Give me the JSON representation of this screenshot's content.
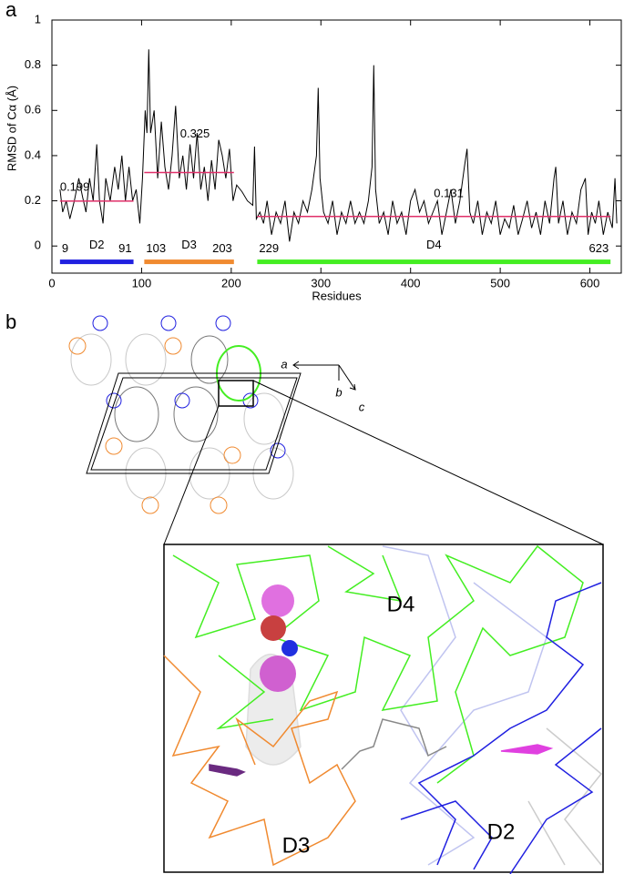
{
  "panel_labels": [
    "a",
    "b"
  ],
  "chart_data": {
    "type": "line",
    "x_label": "Residues",
    "y_label": "RMSD of Cα (Å)",
    "color": "#000000",
    "x": [
      9,
      12,
      16,
      20,
      25,
      30,
      34,
      38,
      42,
      46,
      50,
      53,
      57,
      60,
      65,
      70,
      74,
      78,
      82,
      86,
      90,
      94,
      98,
      101,
      104,
      106,
      108,
      110,
      114,
      118,
      122,
      126,
      130,
      134,
      138,
      142,
      146,
      150,
      154,
      158,
      162,
      166,
      170,
      174,
      178,
      182,
      186,
      190,
      194,
      198,
      202,
      206,
      212,
      218,
      224,
      226,
      228,
      232,
      236,
      240,
      245,
      250,
      255,
      260,
      265,
      270,
      275,
      280,
      285,
      290,
      295,
      297,
      299,
      303,
      308,
      313,
      318,
      323,
      328,
      333,
      338,
      343,
      348,
      353,
      357,
      359,
      361,
      365,
      370,
      375,
      380,
      385,
      390,
      395,
      400,
      405,
      410,
      415,
      420,
      425,
      430,
      435,
      440,
      445,
      450,
      455,
      460,
      463,
      466,
      470,
      475,
      480,
      485,
      490,
      495,
      500,
      505,
      510,
      515,
      520,
      525,
      530,
      535,
      540,
      545,
      550,
      555,
      560,
      562,
      565,
      570,
      575,
      580,
      585,
      590,
      595,
      598,
      602,
      606,
      610,
      615,
      620,
      625,
      628,
      630
    ],
    "values": [
      0.25,
      0.15,
      0.2,
      0.12,
      0.2,
      0.3,
      0.22,
      0.15,
      0.3,
      0.2,
      0.45,
      0.2,
      0.1,
      0.3,
      0.2,
      0.35,
      0.25,
      0.4,
      0.2,
      0.35,
      0.2,
      0.25,
      0.1,
      0.3,
      0.6,
      0.5,
      0.87,
      0.5,
      0.6,
      0.3,
      0.55,
      0.35,
      0.25,
      0.4,
      0.62,
      0.3,
      0.4,
      0.25,
      0.45,
      0.3,
      0.5,
      0.25,
      0.35,
      0.2,
      0.38,
      0.25,
      0.47,
      0.4,
      0.3,
      0.43,
      0.2,
      0.27,
      0.24,
      0.2,
      0.18,
      0.44,
      0.12,
      0.15,
      0.1,
      0.2,
      0.05,
      0.15,
      0.1,
      0.2,
      0.02,
      0.15,
      0.1,
      0.2,
      0.15,
      0.25,
      0.4,
      0.7,
      0.3,
      0.15,
      0.1,
      0.2,
      0.05,
      0.15,
      0.1,
      0.2,
      0.1,
      0.15,
      0.1,
      0.2,
      0.35,
      0.8,
      0.25,
      0.1,
      0.15,
      0.05,
      0.2,
      0.1,
      0.15,
      0.05,
      0.2,
      0.25,
      0.15,
      0.2,
      0.1,
      0.15,
      0.2,
      0.05,
      0.15,
      0.25,
      0.1,
      0.2,
      0.35,
      0.43,
      0.15,
      0.1,
      0.2,
      0.05,
      0.15,
      0.1,
      0.2,
      0.05,
      0.12,
      0.08,
      0.18,
      0.05,
      0.12,
      0.2,
      0.08,
      0.15,
      0.05,
      0.2,
      0.1,
      0.3,
      0.35,
      0.1,
      0.2,
      0.05,
      0.15,
      0.1,
      0.25,
      0.3,
      0.05,
      0.15,
      0.1,
      0.2,
      0.05,
      0.15,
      0.08,
      0.3,
      0.1
    ],
    "xlim": [
      0,
      635
    ],
    "ylim": [
      -0.12,
      1
    ],
    "xticks": [
      0,
      100,
      200,
      300,
      400,
      500,
      600
    ],
    "yticks": [
      0,
      0.2,
      0.4,
      0.6,
      0.8,
      1
    ],
    "mean_color": "#e0306a",
    "domains": [
      {
        "name": "D2",
        "start": 9,
        "end": 91,
        "mean": 0.199,
        "color": "#2020e0"
      },
      {
        "name": "D3",
        "start": 103,
        "end": 203,
        "mean": 0.325,
        "color": "#f08a30"
      },
      {
        "name": "D4",
        "start": 229,
        "end": 623,
        "mean": 0.131,
        "color": "#44ee22"
      }
    ]
  },
  "panel_b": {
    "axes": [
      "a",
      "b",
      "c"
    ],
    "domains": [
      "D4",
      "D3",
      "D2"
    ]
  }
}
